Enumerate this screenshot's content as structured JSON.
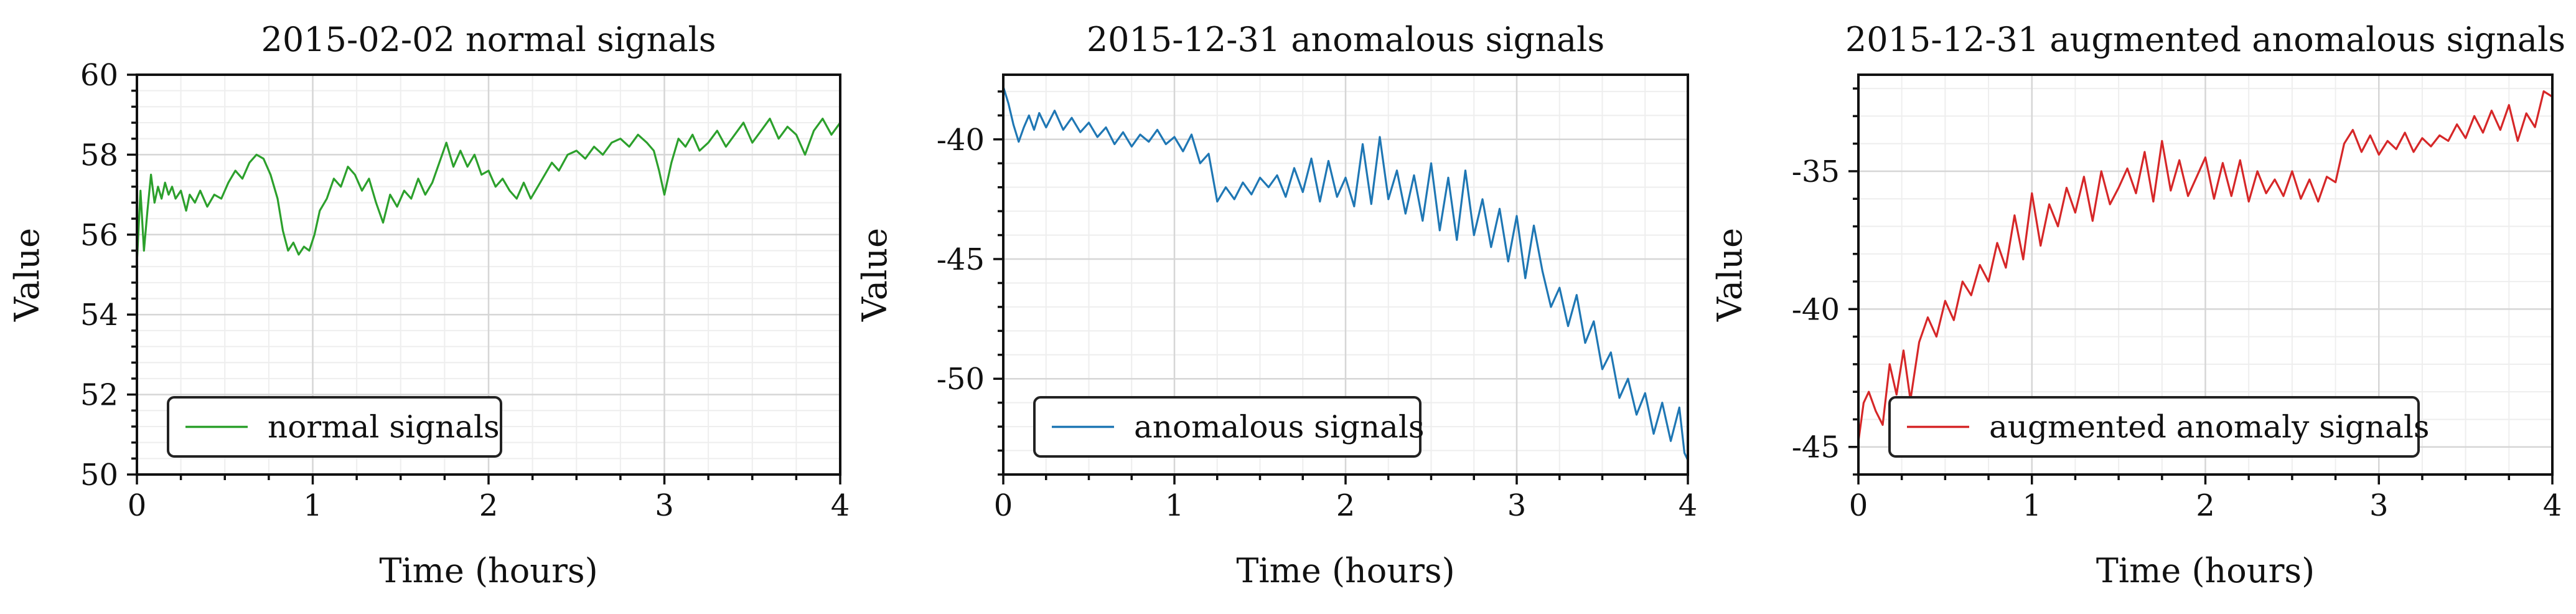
{
  "chart_data": [
    {
      "type": "line",
      "title": "2015-02-02 normal signals",
      "xlabel": "Time (hours)",
      "ylabel": "Value",
      "xlim": [
        0,
        4
      ],
      "ylim": [
        50,
        60
      ],
      "xticks": [
        0,
        1,
        2,
        3,
        4
      ],
      "yticks": [
        50,
        52,
        54,
        56,
        58,
        60
      ],
      "grid": true,
      "legend_position": "lower-left",
      "color": "#2ca02c",
      "series": [
        {
          "name": "normal signals",
          "x": [
            0.0,
            0.02,
            0.04,
            0.06,
            0.08,
            0.1,
            0.12,
            0.14,
            0.16,
            0.18,
            0.2,
            0.22,
            0.25,
            0.28,
            0.3,
            0.33,
            0.36,
            0.4,
            0.44,
            0.48,
            0.52,
            0.56,
            0.6,
            0.64,
            0.68,
            0.72,
            0.76,
            0.8,
            0.83,
            0.86,
            0.89,
            0.92,
            0.95,
            0.98,
            1.01,
            1.04,
            1.08,
            1.12,
            1.16,
            1.2,
            1.24,
            1.28,
            1.32,
            1.36,
            1.4,
            1.44,
            1.48,
            1.52,
            1.56,
            1.6,
            1.64,
            1.68,
            1.72,
            1.76,
            1.8,
            1.84,
            1.88,
            1.92,
            1.96,
            2.0,
            2.04,
            2.08,
            2.12,
            2.16,
            2.2,
            2.24,
            2.28,
            2.32,
            2.36,
            2.4,
            2.45,
            2.5,
            2.55,
            2.6,
            2.65,
            2.7,
            2.75,
            2.8,
            2.85,
            2.9,
            2.94,
            2.97,
            3.0,
            3.04,
            3.08,
            3.12,
            3.16,
            3.2,
            3.25,
            3.3,
            3.35,
            3.4,
            3.45,
            3.5,
            3.55,
            3.6,
            3.65,
            3.7,
            3.75,
            3.8,
            3.85,
            3.9,
            3.95,
            4.0
          ],
          "y": [
            55.3,
            57.1,
            55.6,
            56.6,
            57.5,
            56.8,
            57.2,
            56.9,
            57.3,
            57.0,
            57.2,
            56.9,
            57.1,
            56.6,
            57.0,
            56.8,
            57.1,
            56.7,
            57.0,
            56.9,
            57.3,
            57.6,
            57.4,
            57.8,
            58.0,
            57.9,
            57.5,
            56.9,
            56.1,
            55.6,
            55.8,
            55.5,
            55.7,
            55.6,
            56.0,
            56.6,
            56.9,
            57.4,
            57.2,
            57.7,
            57.5,
            57.1,
            57.4,
            56.8,
            56.3,
            57.0,
            56.7,
            57.1,
            56.9,
            57.4,
            57.0,
            57.3,
            57.8,
            58.3,
            57.7,
            58.1,
            57.7,
            58.0,
            57.5,
            57.6,
            57.2,
            57.4,
            57.1,
            56.9,
            57.3,
            56.9,
            57.2,
            57.5,
            57.8,
            57.6,
            58.0,
            58.1,
            57.9,
            58.2,
            58.0,
            58.3,
            58.4,
            58.2,
            58.5,
            58.3,
            58.1,
            57.6,
            57.0,
            57.8,
            58.4,
            58.2,
            58.5,
            58.1,
            58.3,
            58.6,
            58.2,
            58.5,
            58.8,
            58.3,
            58.6,
            58.9,
            58.4,
            58.7,
            58.5,
            58.0,
            58.6,
            58.9,
            58.5,
            58.8
          ]
        }
      ]
    },
    {
      "type": "line",
      "title": "2015-12-31 anomalous signals",
      "xlabel": "Time (hours)",
      "ylabel": "Value",
      "xlim": [
        0,
        4
      ],
      "ylim": [
        -54,
        -37.3
      ],
      "xticks": [
        0,
        1,
        2,
        3,
        4
      ],
      "yticks": [
        -50,
        -45,
        -40
      ],
      "grid": true,
      "legend_position": "lower-left",
      "color": "#1f77b4",
      "series": [
        {
          "name": "anomalous signals",
          "x": [
            0.0,
            0.03,
            0.06,
            0.09,
            0.12,
            0.15,
            0.18,
            0.21,
            0.25,
            0.3,
            0.35,
            0.4,
            0.45,
            0.5,
            0.55,
            0.6,
            0.65,
            0.7,
            0.75,
            0.8,
            0.85,
            0.9,
            0.95,
            1.0,
            1.05,
            1.1,
            1.15,
            1.2,
            1.25,
            1.3,
            1.35,
            1.4,
            1.45,
            1.5,
            1.55,
            1.6,
            1.65,
            1.7,
            1.75,
            1.8,
            1.85,
            1.9,
            1.95,
            2.0,
            2.05,
            2.1,
            2.15,
            2.2,
            2.25,
            2.3,
            2.35,
            2.4,
            2.45,
            2.5,
            2.55,
            2.6,
            2.65,
            2.7,
            2.75,
            2.8,
            2.85,
            2.9,
            2.95,
            3.0,
            3.05,
            3.1,
            3.15,
            3.2,
            3.25,
            3.3,
            3.35,
            3.4,
            3.45,
            3.5,
            3.55,
            3.6,
            3.65,
            3.7,
            3.75,
            3.8,
            3.85,
            3.9,
            3.95,
            3.98,
            4.0
          ],
          "y": [
            -37.8,
            -38.5,
            -39.4,
            -40.1,
            -39.5,
            -39.0,
            -39.6,
            -38.9,
            -39.5,
            -38.8,
            -39.6,
            -39.1,
            -39.7,
            -39.3,
            -39.9,
            -39.5,
            -40.2,
            -39.7,
            -40.3,
            -39.8,
            -40.1,
            -39.6,
            -40.2,
            -39.9,
            -40.5,
            -39.8,
            -41.0,
            -40.6,
            -42.6,
            -42.0,
            -42.5,
            -41.8,
            -42.3,
            -41.6,
            -42.0,
            -41.5,
            -42.4,
            -41.2,
            -42.2,
            -40.8,
            -42.6,
            -40.9,
            -42.4,
            -41.6,
            -42.8,
            -40.2,
            -42.7,
            -39.9,
            -42.5,
            -41.3,
            -43.1,
            -41.5,
            -43.4,
            -41.0,
            -43.8,
            -41.6,
            -44.2,
            -41.3,
            -44.0,
            -42.5,
            -44.5,
            -42.9,
            -45.1,
            -43.2,
            -45.8,
            -43.6,
            -45.5,
            -47.0,
            -46.2,
            -47.8,
            -46.5,
            -48.5,
            -47.6,
            -49.6,
            -48.9,
            -50.8,
            -50.0,
            -51.5,
            -50.6,
            -52.3,
            -51.0,
            -52.6,
            -51.2,
            -53.1,
            -53.4
          ]
        }
      ]
    },
    {
      "type": "line",
      "title": "2015-12-31 augmented anomalous signals",
      "xlabel": "Time (hours)",
      "ylabel": "Value",
      "xlim": [
        0,
        4
      ],
      "ylim": [
        -46,
        -31.5
      ],
      "xticks": [
        0,
        1,
        2,
        3,
        4
      ],
      "yticks": [
        -45,
        -40,
        -35
      ],
      "grid": true,
      "legend_position": "lower-left",
      "color": "#d62728",
      "series": [
        {
          "name": "augmented anomaly signals",
          "x": [
            0.0,
            0.03,
            0.06,
            0.1,
            0.14,
            0.18,
            0.22,
            0.26,
            0.3,
            0.35,
            0.4,
            0.45,
            0.5,
            0.55,
            0.6,
            0.65,
            0.7,
            0.75,
            0.8,
            0.85,
            0.9,
            0.95,
            1.0,
            1.05,
            1.1,
            1.15,
            1.2,
            1.25,
            1.3,
            1.35,
            1.4,
            1.45,
            1.5,
            1.55,
            1.6,
            1.65,
            1.7,
            1.75,
            1.8,
            1.85,
            1.9,
            1.95,
            2.0,
            2.05,
            2.1,
            2.15,
            2.2,
            2.25,
            2.3,
            2.35,
            2.4,
            2.45,
            2.5,
            2.55,
            2.6,
            2.65,
            2.7,
            2.75,
            2.8,
            2.85,
            2.9,
            2.95,
            3.0,
            3.05,
            3.1,
            3.15,
            3.2,
            3.25,
            3.3,
            3.35,
            3.4,
            3.45,
            3.5,
            3.55,
            3.6,
            3.65,
            3.7,
            3.75,
            3.8,
            3.85,
            3.9,
            3.95,
            4.0
          ],
          "y": [
            -44.8,
            -43.4,
            -43.0,
            -43.7,
            -44.2,
            -42.0,
            -43.1,
            -41.5,
            -43.3,
            -41.2,
            -40.3,
            -41.0,
            -39.7,
            -40.4,
            -39.0,
            -39.5,
            -38.4,
            -39.0,
            -37.6,
            -38.5,
            -36.6,
            -38.2,
            -35.8,
            -37.7,
            -36.2,
            -37.0,
            -35.6,
            -36.5,
            -35.2,
            -36.8,
            -35.0,
            -36.2,
            -35.6,
            -34.9,
            -35.8,
            -34.3,
            -36.1,
            -33.9,
            -35.7,
            -34.6,
            -35.9,
            -35.2,
            -34.5,
            -36.0,
            -34.7,
            -35.9,
            -34.6,
            -36.1,
            -35.0,
            -35.8,
            -35.3,
            -35.9,
            -35.0,
            -36.0,
            -35.3,
            -36.1,
            -35.2,
            -35.4,
            -34.0,
            -33.5,
            -34.3,
            -33.7,
            -34.4,
            -33.9,
            -34.2,
            -33.6,
            -34.3,
            -33.8,
            -34.1,
            -33.7,
            -33.9,
            -33.3,
            -33.8,
            -33.0,
            -33.6,
            -32.8,
            -33.5,
            -32.6,
            -33.9,
            -32.9,
            -33.4,
            -32.1,
            -32.3
          ]
        }
      ]
    }
  ]
}
